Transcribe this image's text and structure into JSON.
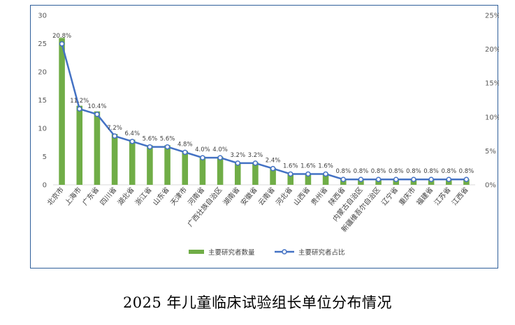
{
  "caption": "2025 年儿童临床试验组长单位分布情况",
  "chart_data": {
    "type": "bar",
    "categories": [
      "北京市",
      "上海市",
      "广东省",
      "四川省",
      "湖北省",
      "浙江省",
      "山东省",
      "天津市",
      "河南省",
      "广西壮族自治区",
      "湖南省",
      "安徽省",
      "云南省",
      "河北省",
      "山西省",
      "贵州省",
      "陕西省",
      "内蒙古自治区",
      "新疆维吾尔自治区",
      "辽宁省",
      "重庆市",
      "福建省",
      "江苏省",
      "江西省"
    ],
    "series": [
      {
        "name": "主要研究者数量",
        "type": "bar",
        "axis": "left",
        "values": [
          26,
          14,
          13,
          9,
          8,
          7,
          7,
          6,
          5,
          5,
          4,
          4,
          3,
          2,
          2,
          2,
          1,
          1,
          1,
          1,
          1,
          1,
          1,
          1
        ]
      },
      {
        "name": "主要研究者占比",
        "type": "line",
        "axis": "right",
        "values": [
          20.8,
          11.2,
          10.4,
          7.2,
          6.4,
          5.6,
          5.6,
          4.8,
          4.0,
          4.0,
          3.2,
          3.2,
          2.4,
          1.6,
          1.6,
          1.6,
          0.8,
          0.8,
          0.8,
          0.8,
          0.8,
          0.8,
          0.8,
          0.8
        ],
        "labels": [
          "20.8%",
          "11.2%",
          "10.4%",
          "7.2%",
          "6.4%",
          "5.6%",
          "5.6%",
          "4.8%",
          "4.0%",
          "4.0%",
          "3.2%",
          "3.2%",
          "2.4%",
          "1.6%",
          "1.6%",
          "1.6%",
          "0.8%",
          "0.8%",
          "0.8%",
          "0.8%",
          "0.8%",
          "0.8%",
          "0.8%",
          "0.8%"
        ]
      }
    ],
    "y_left": {
      "lim": [
        0,
        30
      ],
      "ticks": [
        "0",
        "5",
        "10",
        "15",
        "20",
        "25",
        "30"
      ]
    },
    "y_right": {
      "lim": [
        0,
        25
      ],
      "ticks": [
        "0%",
        "5%",
        "10%",
        "15%",
        "20%",
        "25%"
      ]
    },
    "legend_position": "bottom",
    "grid": false,
    "colors": {
      "bar": "#70ad47",
      "line": "#4472c4",
      "marker_fill": "#ffffff"
    }
  }
}
